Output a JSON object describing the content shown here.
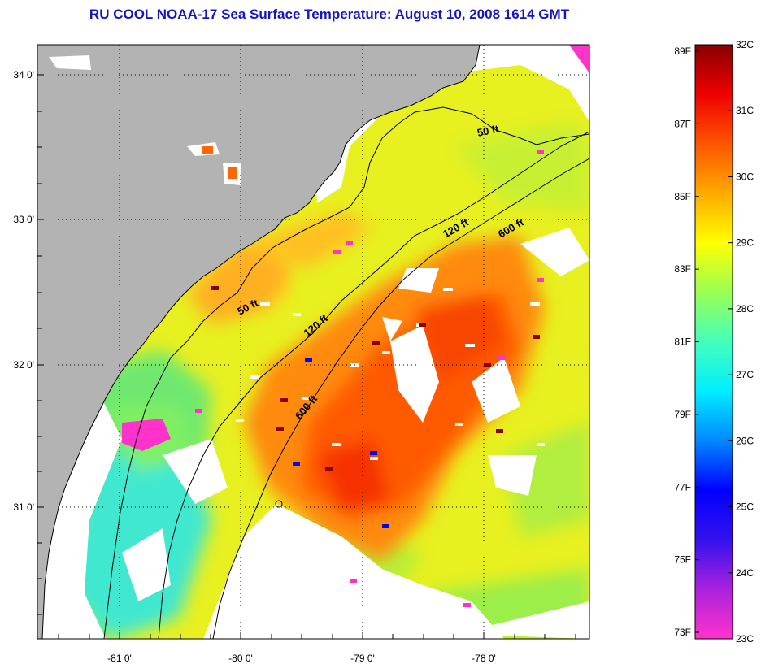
{
  "title": "RU COOL  NOAA-17  Sea Surface Temperature:  August 10, 2008 1614 GMT",
  "map": {
    "lon_ticks": [
      "-81 0'",
      "-80 0'",
      "-79 0'",
      "-78 0'"
    ],
    "lat_ticks": [
      "34 0'",
      "33 0'",
      "32 0'",
      "31 0'"
    ],
    "contour_labels": [
      "50 ft",
      "50 ft",
      "120 ft",
      "120 ft",
      "600 ft",
      "600 ft"
    ]
  },
  "colorbar": {
    "fahrenheit_labels": [
      "89F",
      "87F",
      "85F",
      "83F",
      "81F",
      "79F",
      "77F",
      "75F",
      "73F"
    ],
    "celsius_labels": [
      "32C",
      "31C",
      "30C",
      "29C",
      "28C",
      "27C",
      "26C",
      "25C",
      "24C",
      "23C"
    ],
    "colors": [
      "#ff33cc",
      "#aa22dd",
      "#3311ee",
      "#0000ff",
      "#0088ff",
      "#00eeff",
      "#44ffbb",
      "#99ff55",
      "#ffff00",
      "#ffaa00",
      "#ff5500",
      "#ee0000",
      "#880000"
    ]
  },
  "colors": {
    "land": "#b3b3b3",
    "cloud": "#ffffff",
    "title": "#1515c8"
  }
}
